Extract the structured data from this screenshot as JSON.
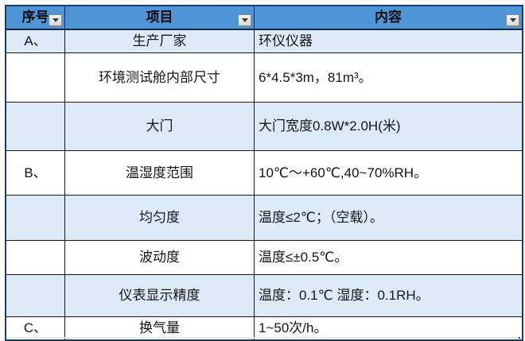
{
  "table": {
    "headers": [
      {
        "label": "序号"
      },
      {
        "label": "项目"
      },
      {
        "label": "内容"
      }
    ],
    "rows": [
      {
        "no": "A、",
        "item": "生产厂家",
        "content": "环仪仪器"
      },
      {
        "no": "",
        "item": "环境测试舱内部尺寸",
        "content": "6*4.5*3m，81m³。"
      },
      {
        "no": "",
        "item": "大门",
        "content": "大门宽度0.8W*2.0H(米)"
      },
      {
        "no": "B、",
        "item": "温湿度范围",
        "content": "10℃～+60℃,40~70%RH。"
      },
      {
        "no": "",
        "item": "均匀度",
        "content": "温度≤2℃；（空载）。"
      },
      {
        "no": "",
        "item": "波动度",
        "content": "温度≤±0.5℃。"
      },
      {
        "no": "",
        "item": "仪表显示精度",
        "content": "温度：0.1℃ 湿度：0.1RH。"
      },
      {
        "no": "C、",
        "item": "换气量",
        "content": "1~50次/h。"
      }
    ],
    "colors": {
      "header_bg": "#4f94d4",
      "band_bg": "#dceaf7",
      "outer_border": "#1c3e6e",
      "grid_line": "#1a1a1a"
    }
  }
}
